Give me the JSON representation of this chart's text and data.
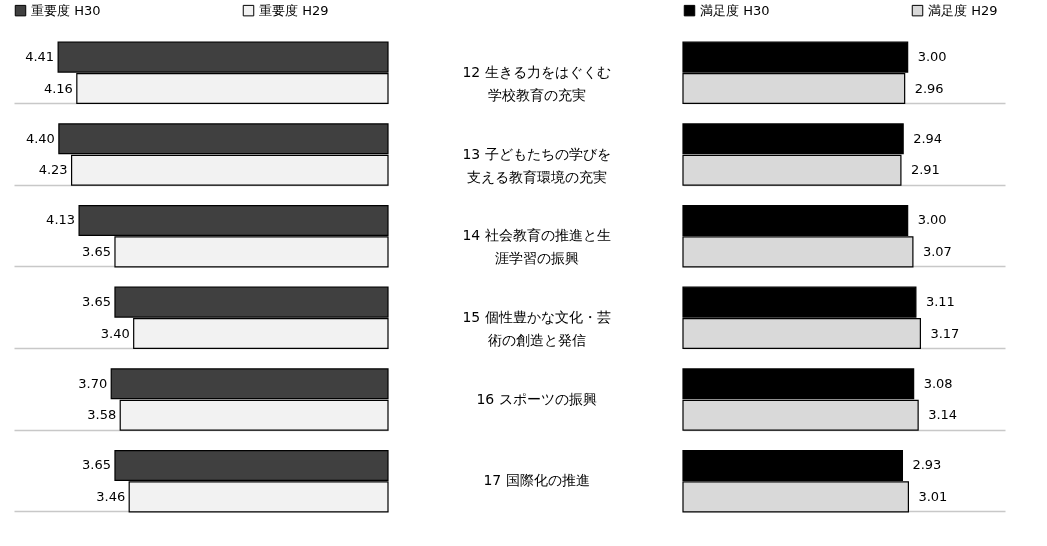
{
  "chart_data": [
    {
      "type": "bar",
      "orientation": "horizontal",
      "categories": [
        "12 生きる力をはぐくむ学校教育の充実",
        "13 子どもたちの学びを支える教育環境の充実",
        "14 社会教育の推進と生涯学習の振興",
        "15 個性豊かな文化・芸術の創造と発信",
        "16 スポーツの振興",
        "17 国際化の推進"
      ],
      "series": [
        {
          "name": "重要度 H30",
          "color": "#404040",
          "values": [
            4.41,
            4.4,
            4.13,
            3.65,
            3.7,
            3.65
          ],
          "value_labels": [
            "4.41",
            "4.40",
            "4.13",
            "3.65",
            "3.70",
            "3.65"
          ]
        },
        {
          "name": "重要度 H29",
          "color": "#f2f2f2",
          "values": [
            4.16,
            4.23,
            3.65,
            3.4,
            3.58,
            3.46
          ],
          "value_labels": [
            "4.16",
            "4.23",
            "3.65",
            "3.40",
            "3.58",
            "3.46"
          ]
        }
      ],
      "xlim": [
        5,
        0
      ],
      "legend": "top",
      "grid": "y",
      "tick_labels": "y"
    },
    {
      "type": "bar",
      "orientation": "horizontal",
      "categories": [
        null,
        null,
        null,
        null,
        null,
        null
      ],
      "series": [
        {
          "name": "満足度 H30",
          "color": "#000000",
          "values": [
            3.0,
            2.94,
            3.0,
            3.11,
            3.08,
            2.93
          ],
          "value_labels": [
            "3.00",
            "2.94",
            "3.00",
            "3.11",
            "3.08",
            "2.93"
          ]
        },
        {
          "name": "満足度 H29",
          "color": "#d9d9d9",
          "values": [
            2.96,
            2.91,
            3.07,
            3.17,
            3.14,
            3.01
          ],
          "value_labels": [
            "2.96",
            "2.91",
            "3.07",
            "3.17",
            "3.14",
            "3.01"
          ]
        }
      ],
      "xlim": [
        0,
        4.3
      ],
      "legend": "top",
      "grid": "y",
      "tick_labels": false
    }
  ]
}
